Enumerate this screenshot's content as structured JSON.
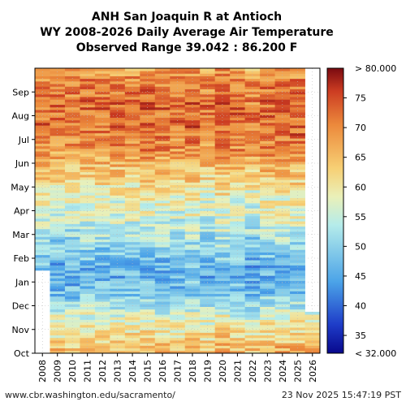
{
  "chart_data": {
    "type": "heatmap",
    "title_lines": [
      "ANH San Joaquin R at Antioch",
      "WY 2008-2026 Daily Average Air Temperature",
      "Observed Range 39.042 : 86.200 F"
    ],
    "x_years": [
      "2008",
      "2009",
      "2010",
      "2011",
      "2012",
      "2013",
      "2014",
      "2015",
      "2016",
      "2017",
      "2018",
      "2019",
      "2020",
      "2021",
      "2022",
      "2023",
      "2024",
      "2025",
      "2026"
    ],
    "y_months": [
      "Oct",
      "Nov",
      "Dec",
      "Jan",
      "Feb",
      "Mar",
      "Apr",
      "May",
      "Jun",
      "Jul",
      "Aug",
      "Sep"
    ],
    "colorbar": {
      "min": 32,
      "max": 80,
      "ticks": [
        "35",
        "40",
        "45",
        "50",
        "55",
        "60",
        "65",
        "70",
        "75"
      ],
      "tick_values": [
        35,
        40,
        45,
        50,
        55,
        60,
        65,
        70,
        75
      ],
      "top_label": "> 80.000",
      "bottom_label": "< 32.000"
    },
    "monthly_typical_temp_F": [
      63,
      57,
      48,
      46,
      50,
      55,
      58,
      63,
      69,
      72,
      72,
      70
    ],
    "data_coverage": {
      "2008": "from mid-Jan",
      "2026": "Oct to mid-Nov only"
    },
    "grid": true,
    "grid_style": "dotted"
  },
  "footer": {
    "source_url": "www.cbr.washington.edu/sacramento/",
    "timestamp": "23 Nov 2025 15:47:19 PST"
  }
}
